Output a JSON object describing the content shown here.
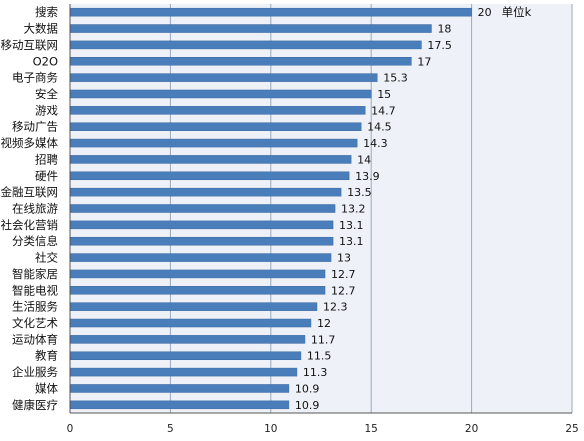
{
  "chart_data": {
    "type": "bar",
    "orientation": "horizontal",
    "title": "",
    "xlabel": "",
    "ylabel": "",
    "unit_label": "单位k",
    "xlim": [
      0,
      25
    ],
    "x_ticks": [
      "0",
      "5",
      "10",
      "15",
      "20",
      "25"
    ],
    "grid": true,
    "colors": {
      "bar": "#4a7ebb",
      "plot_bg": "#eef2f8",
      "grid": "#9aa8bb"
    },
    "categories": [
      "搜索",
      "大数据",
      "移动互联网",
      "O2O",
      "电子商务",
      "安全",
      "游戏",
      "移动广告",
      "视频多媒体",
      "招聘",
      "硬件",
      "金融互联网",
      "在线旅游",
      "社会化营销",
      "分类信息",
      "社交",
      "智能家居",
      "智能电视",
      "生活服务",
      "文化艺术",
      "运动体育",
      "教育",
      "企业服务",
      "媒体",
      "健康医疗"
    ],
    "values": [
      20,
      18,
      17.5,
      17,
      15.3,
      15,
      14.7,
      14.5,
      14.3,
      14,
      13.9,
      13.5,
      13.2,
      13.1,
      13.1,
      13,
      12.7,
      12.7,
      12.3,
      12,
      11.7,
      11.5,
      11.3,
      10.9,
      10.9
    ],
    "value_labels": [
      "20",
      "18",
      "17.5",
      "17",
      "15.3",
      "15",
      "14.7",
      "14.5",
      "14.3",
      "14",
      "13.9",
      "13.5",
      "13.2",
      "13.1",
      "13.1",
      "13",
      "12.7",
      "12.7",
      "12.3",
      "12",
      "11.7",
      "11.5",
      "11.3",
      "10.9",
      "10.9"
    ]
  }
}
